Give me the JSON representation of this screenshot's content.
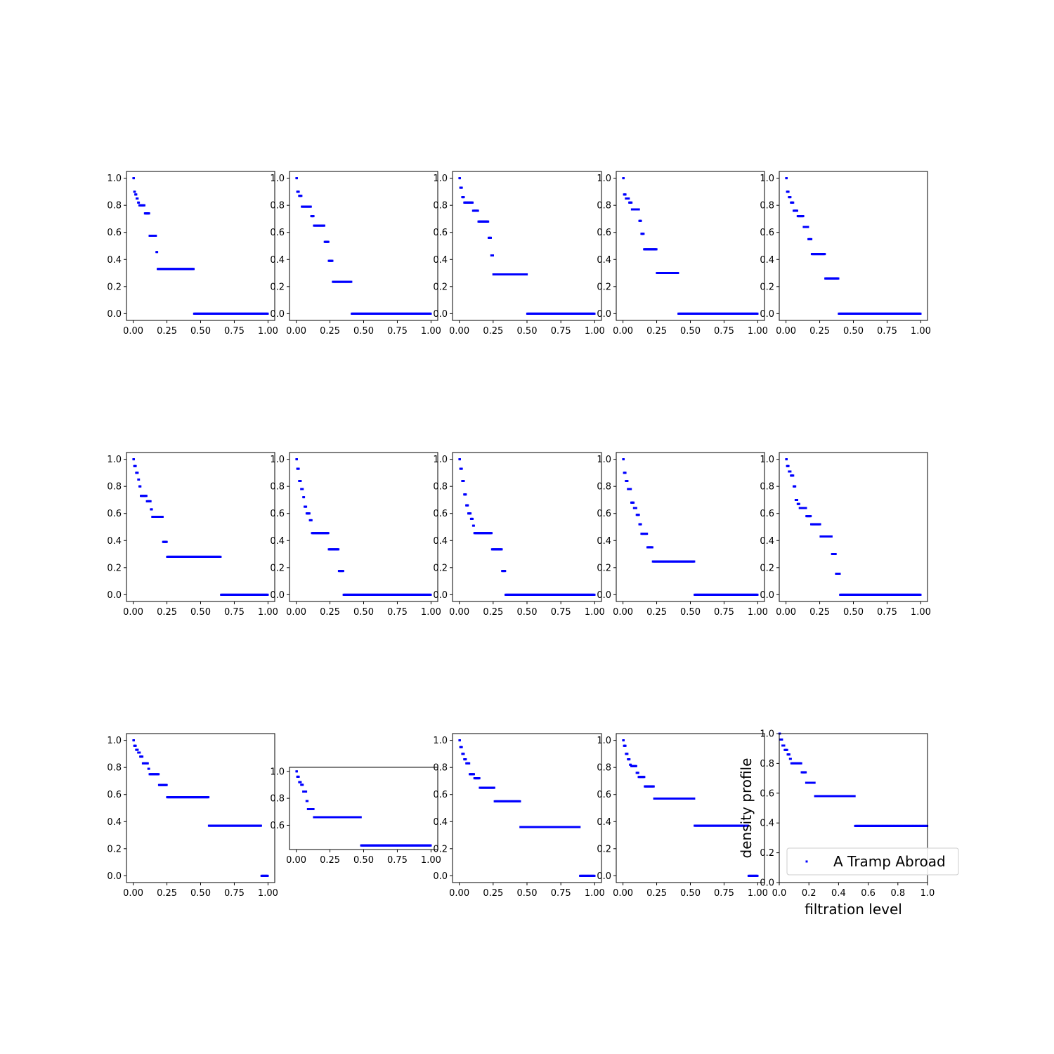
{
  "figure": {
    "marker_color": "#0000ff",
    "axes_color": "#000000",
    "background": "#ffffff"
  },
  "chart_data": [
    {
      "type": "scatter",
      "xticks": [
        "0.00",
        "0.25",
        "0.50",
        "0.75",
        "1.00"
      ],
      "yticks": [
        "0.0",
        "0.2",
        "0.4",
        "0.6",
        "0.8",
        "1.0"
      ],
      "xlim": [
        -0.05,
        1.05
      ],
      "ylim": [
        -0.05,
        1.05
      ],
      "steps": [
        [
          0,
          0.006,
          1.0
        ],
        [
          0.006,
          0.014,
          0.9
        ],
        [
          0.014,
          0.024,
          0.88
        ],
        [
          0.024,
          0.034,
          0.85
        ],
        [
          0.034,
          0.044,
          0.82
        ],
        [
          0.044,
          0.085,
          0.8
        ],
        [
          0.085,
          0.12,
          0.74
        ],
        [
          0.12,
          0.17,
          0.575
        ],
        [
          0.17,
          0.18,
          0.455
        ],
        [
          0.18,
          0.45,
          0.33
        ],
        [
          0.45,
          1.0,
          0.0
        ]
      ]
    },
    {
      "type": "scatter",
      "xticks": [
        "0.00",
        "0.25",
        "0.50",
        "0.75",
        "1.00"
      ],
      "yticks": [
        "0.0",
        "0.2",
        "0.4",
        "0.6",
        "0.8",
        "1.0"
      ],
      "xlim": [
        -0.05,
        1.05
      ],
      "ylim": [
        -0.05,
        1.05
      ],
      "steps": [
        [
          0,
          0.006,
          1.0
        ],
        [
          0.006,
          0.02,
          0.9
        ],
        [
          0.02,
          0.04,
          0.87
        ],
        [
          0.04,
          0.11,
          0.79
        ],
        [
          0.11,
          0.13,
          0.72
        ],
        [
          0.13,
          0.21,
          0.65
        ],
        [
          0.21,
          0.24,
          0.53
        ],
        [
          0.24,
          0.27,
          0.39
        ],
        [
          0.27,
          0.41,
          0.235
        ],
        [
          0.41,
          1.0,
          0.0
        ]
      ]
    },
    {
      "type": "scatter",
      "xticks": [
        "0.00",
        "0.25",
        "0.50",
        "0.75",
        "1.00"
      ],
      "yticks": [
        "0.0",
        "0.2",
        "0.4",
        "0.6",
        "0.8",
        "1.0"
      ],
      "xlim": [
        -0.05,
        1.05
      ],
      "ylim": [
        -0.05,
        1.05
      ],
      "steps": [
        [
          0,
          0.006,
          1.0
        ],
        [
          0.006,
          0.02,
          0.93
        ],
        [
          0.02,
          0.035,
          0.86
        ],
        [
          0.035,
          0.1,
          0.82
        ],
        [
          0.1,
          0.14,
          0.76
        ],
        [
          0.14,
          0.215,
          0.68
        ],
        [
          0.215,
          0.235,
          0.56
        ],
        [
          0.235,
          0.25,
          0.43
        ],
        [
          0.25,
          0.5,
          0.29
        ],
        [
          0.5,
          1.0,
          0.0
        ]
      ]
    },
    {
      "type": "scatter",
      "xticks": [
        "0.00",
        "0.25",
        "0.50",
        "0.75",
        "1.00"
      ],
      "yticks": [
        "0.0",
        "0.2",
        "0.4",
        "0.6",
        "0.8",
        "1.0"
      ],
      "xlim": [
        -0.05,
        1.05
      ],
      "ylim": [
        -0.05,
        1.05
      ],
      "steps": [
        [
          0,
          0.006,
          1.0
        ],
        [
          0.006,
          0.02,
          0.88
        ],
        [
          0.02,
          0.045,
          0.85
        ],
        [
          0.045,
          0.065,
          0.82
        ],
        [
          0.065,
          0.12,
          0.77
        ],
        [
          0.12,
          0.135,
          0.685
        ],
        [
          0.135,
          0.155,
          0.59
        ],
        [
          0.155,
          0.25,
          0.475
        ],
        [
          0.25,
          0.41,
          0.3
        ],
        [
          0.41,
          1.0,
          0.0
        ]
      ]
    },
    {
      "type": "scatter",
      "xticks": [
        "0.00",
        "0.25",
        "0.50",
        "0.75",
        "1.00"
      ],
      "yticks": [
        "0.0",
        "0.2",
        "0.4",
        "0.6",
        "0.8",
        "1.0"
      ],
      "xlim": [
        -0.05,
        1.05
      ],
      "ylim": [
        -0.05,
        1.05
      ],
      "steps": [
        [
          0,
          0.006,
          1.0
        ],
        [
          0.006,
          0.02,
          0.9
        ],
        [
          0.02,
          0.035,
          0.86
        ],
        [
          0.035,
          0.055,
          0.82
        ],
        [
          0.055,
          0.085,
          0.76
        ],
        [
          0.085,
          0.13,
          0.72
        ],
        [
          0.13,
          0.165,
          0.64
        ],
        [
          0.165,
          0.19,
          0.55
        ],
        [
          0.19,
          0.29,
          0.44
        ],
        [
          0.29,
          0.39,
          0.26
        ],
        [
          0.39,
          1.0,
          0.0
        ]
      ]
    },
    {
      "type": "scatter",
      "xticks": [
        "0.00",
        "0.25",
        "0.50",
        "0.75",
        "1.00"
      ],
      "yticks": [
        "0.0",
        "0.2",
        "0.4",
        "0.6",
        "0.8",
        "1.0"
      ],
      "xlim": [
        -0.05,
        1.05
      ],
      "ylim": [
        -0.05,
        1.05
      ],
      "steps": [
        [
          0,
          0.006,
          1.0
        ],
        [
          0.006,
          0.02,
          0.95
        ],
        [
          0.02,
          0.035,
          0.9
        ],
        [
          0.035,
          0.045,
          0.85
        ],
        [
          0.045,
          0.055,
          0.8
        ],
        [
          0.055,
          0.1,
          0.73
        ],
        [
          0.1,
          0.13,
          0.69
        ],
        [
          0.13,
          0.14,
          0.63
        ],
        [
          0.14,
          0.22,
          0.575
        ],
        [
          0.22,
          0.25,
          0.39
        ],
        [
          0.25,
          0.65,
          0.28
        ],
        [
          0.65,
          1.0,
          0.0
        ]
      ]
    },
    {
      "type": "scatter",
      "xticks": [
        "0.00",
        "0.25",
        "0.50",
        "0.75",
        "1.00"
      ],
      "yticks": [
        "0.0",
        "0.2",
        "0.4",
        "0.6",
        "0.8",
        "1.0"
      ],
      "xlim": [
        -0.05,
        1.05
      ],
      "ylim": [
        -0.05,
        1.05
      ],
      "steps": [
        [
          0,
          0.006,
          1.0
        ],
        [
          0.006,
          0.02,
          0.93
        ],
        [
          0.02,
          0.035,
          0.84
        ],
        [
          0.035,
          0.05,
          0.78
        ],
        [
          0.05,
          0.06,
          0.72
        ],
        [
          0.06,
          0.075,
          0.65
        ],
        [
          0.075,
          0.1,
          0.6
        ],
        [
          0.1,
          0.115,
          0.55
        ],
        [
          0.115,
          0.24,
          0.455
        ],
        [
          0.24,
          0.315,
          0.335
        ],
        [
          0.315,
          0.35,
          0.175
        ],
        [
          0.35,
          1.0,
          0.0
        ]
      ]
    },
    {
      "type": "scatter",
      "xticks": [
        "0.00",
        "0.25",
        "0.50",
        "0.75",
        "1.00"
      ],
      "yticks": [
        "0.0",
        "0.2",
        "0.4",
        "0.6",
        "0.8",
        "1.0"
      ],
      "xlim": [
        -0.05,
        1.05
      ],
      "ylim": [
        -0.05,
        1.05
      ],
      "steps": [
        [
          0,
          0.006,
          1.0
        ],
        [
          0.006,
          0.02,
          0.93
        ],
        [
          0.02,
          0.035,
          0.84
        ],
        [
          0.035,
          0.05,
          0.74
        ],
        [
          0.05,
          0.065,
          0.66
        ],
        [
          0.065,
          0.085,
          0.6
        ],
        [
          0.085,
          0.1,
          0.56
        ],
        [
          0.1,
          0.11,
          0.51
        ],
        [
          0.11,
          0.24,
          0.455
        ],
        [
          0.24,
          0.315,
          0.335
        ],
        [
          0.315,
          0.34,
          0.175
        ],
        [
          0.34,
          1.0,
          0.0
        ]
      ]
    },
    {
      "type": "scatter",
      "xticks": [
        "0.00",
        "0.25",
        "0.50",
        "0.75",
        "1.00"
      ],
      "yticks": [
        "0.0",
        "0.2",
        "0.4",
        "0.6",
        "0.8",
        "1.0"
      ],
      "xlim": [
        -0.05,
        1.05
      ],
      "ylim": [
        -0.05,
        1.05
      ],
      "steps": [
        [
          0,
          0.006,
          1.0
        ],
        [
          0.006,
          0.02,
          0.9
        ],
        [
          0.02,
          0.035,
          0.84
        ],
        [
          0.035,
          0.06,
          0.78
        ],
        [
          0.06,
          0.08,
          0.68
        ],
        [
          0.08,
          0.1,
          0.64
        ],
        [
          0.1,
          0.12,
          0.59
        ],
        [
          0.12,
          0.135,
          0.52
        ],
        [
          0.135,
          0.18,
          0.45
        ],
        [
          0.18,
          0.22,
          0.35
        ],
        [
          0.22,
          0.53,
          0.245
        ],
        [
          0.53,
          1.0,
          0.0
        ]
      ]
    },
    {
      "type": "scatter",
      "xticks": [
        "0.00",
        "0.25",
        "0.50",
        "0.75",
        "1.00"
      ],
      "yticks": [
        "0.0",
        "0.2",
        "0.4",
        "0.6",
        "0.8",
        "1.0"
      ],
      "xlim": [
        -0.05,
        1.05
      ],
      "ylim": [
        -0.05,
        1.05
      ],
      "steps": [
        [
          0,
          0.006,
          1.0
        ],
        [
          0.006,
          0.02,
          0.95
        ],
        [
          0.02,
          0.035,
          0.91
        ],
        [
          0.035,
          0.055,
          0.88
        ],
        [
          0.055,
          0.07,
          0.8
        ],
        [
          0.07,
          0.085,
          0.7
        ],
        [
          0.085,
          0.1,
          0.67
        ],
        [
          0.1,
          0.15,
          0.64
        ],
        [
          0.15,
          0.185,
          0.58
        ],
        [
          0.185,
          0.255,
          0.52
        ],
        [
          0.255,
          0.34,
          0.43
        ],
        [
          0.34,
          0.37,
          0.3
        ],
        [
          0.37,
          0.4,
          0.155
        ],
        [
          0.4,
          1.0,
          0.0
        ]
      ]
    },
    {
      "type": "scatter",
      "xticks": [
        "0.00",
        "0.25",
        "0.50",
        "0.75",
        "1.00"
      ],
      "yticks": [
        "0.0",
        "0.2",
        "0.4",
        "0.6",
        "0.8",
        "1.0"
      ],
      "xlim": [
        -0.05,
        1.05
      ],
      "ylim": [
        -0.05,
        1.05
      ],
      "steps": [
        [
          0,
          0.006,
          1.0
        ],
        [
          0.006,
          0.02,
          0.96
        ],
        [
          0.02,
          0.035,
          0.93
        ],
        [
          0.035,
          0.05,
          0.91
        ],
        [
          0.05,
          0.07,
          0.88
        ],
        [
          0.07,
          0.11,
          0.83
        ],
        [
          0.11,
          0.12,
          0.79
        ],
        [
          0.12,
          0.19,
          0.75
        ],
        [
          0.19,
          0.25,
          0.67
        ],
        [
          0.25,
          0.56,
          0.58
        ],
        [
          0.56,
          0.95,
          0.37
        ],
        [
          0.95,
          1.0,
          0.0
        ]
      ]
    },
    {
      "type": "scatter",
      "xticks": [
        "0.00",
        "0.25",
        "0.50",
        "0.75",
        "1.00"
      ],
      "yticks": [
        "0.6",
        "0.8",
        "1.0"
      ],
      "xlim": [
        -0.05,
        1.05
      ],
      "ylim": [
        0.42,
        1.03
      ],
      "steps": [
        [
          0,
          0.006,
          1.0
        ],
        [
          0.006,
          0.02,
          0.96
        ],
        [
          0.02,
          0.035,
          0.92
        ],
        [
          0.035,
          0.05,
          0.9
        ],
        [
          0.05,
          0.075,
          0.85
        ],
        [
          0.075,
          0.085,
          0.78
        ],
        [
          0.085,
          0.13,
          0.72
        ],
        [
          0.13,
          0.48,
          0.66
        ],
        [
          0.48,
          1.0,
          0.45
        ]
      ]
    },
    {
      "type": "scatter",
      "xticks": [
        "0.00",
        "0.25",
        "0.50",
        "0.75",
        "1.00"
      ],
      "yticks": [
        "0.0",
        "0.2",
        "0.4",
        "0.6",
        "0.8",
        "1.0"
      ],
      "xlim": [
        -0.05,
        1.05
      ],
      "ylim": [
        -0.05,
        1.05
      ],
      "steps": [
        [
          0,
          0.006,
          1.0
        ],
        [
          0.006,
          0.02,
          0.95
        ],
        [
          0.02,
          0.035,
          0.9
        ],
        [
          0.035,
          0.05,
          0.86
        ],
        [
          0.05,
          0.075,
          0.83
        ],
        [
          0.075,
          0.11,
          0.75
        ],
        [
          0.11,
          0.15,
          0.72
        ],
        [
          0.15,
          0.26,
          0.65
        ],
        [
          0.26,
          0.45,
          0.55
        ],
        [
          0.45,
          0.89,
          0.36
        ],
        [
          0.89,
          1.0,
          0.0
        ]
      ]
    },
    {
      "type": "scatter",
      "xticks": [
        "0.00",
        "0.25",
        "0.50",
        "0.75",
        "1.00"
      ],
      "yticks": [
        "0.0",
        "0.2",
        "0.4",
        "0.6",
        "0.8",
        "1.0"
      ],
      "xlim": [
        -0.05,
        1.05
      ],
      "ylim": [
        -0.05,
        1.05
      ],
      "steps": [
        [
          0,
          0.006,
          1.0
        ],
        [
          0.006,
          0.02,
          0.96
        ],
        [
          0.02,
          0.035,
          0.9
        ],
        [
          0.035,
          0.05,
          0.86
        ],
        [
          0.05,
          0.06,
          0.82
        ],
        [
          0.06,
          0.1,
          0.81
        ],
        [
          0.1,
          0.115,
          0.76
        ],
        [
          0.115,
          0.16,
          0.73
        ],
        [
          0.16,
          0.23,
          0.66
        ],
        [
          0.23,
          0.53,
          0.57
        ],
        [
          0.53,
          0.93,
          0.37
        ],
        [
          0.93,
          1.0,
          0.0
        ]
      ]
    },
    {
      "type": "scatter",
      "xticks": [
        "0.0",
        "0.2",
        "0.4",
        "0.6",
        "0.8",
        "1.0"
      ],
      "yticks": [
        "0.0",
        "0.2",
        "0.4",
        "0.6",
        "0.8",
        "1.0"
      ],
      "xlim": [
        0,
        1
      ],
      "ylim": [
        0,
        1
      ],
      "xlabel": "filtration level",
      "ylabel": "density profile",
      "legend": "A Tramp Abroad",
      "legend_loc": "lower right",
      "steps": [
        [
          0,
          0.006,
          1.0
        ],
        [
          0.006,
          0.02,
          0.96
        ],
        [
          0.02,
          0.035,
          0.92
        ],
        [
          0.035,
          0.055,
          0.89
        ],
        [
          0.055,
          0.07,
          0.86
        ],
        [
          0.07,
          0.08,
          0.83
        ],
        [
          0.08,
          0.15,
          0.8
        ],
        [
          0.15,
          0.18,
          0.74
        ],
        [
          0.18,
          0.24,
          0.67
        ],
        [
          0.24,
          0.51,
          0.58
        ],
        [
          0.51,
          1.0,
          0.38
        ]
      ]
    }
  ]
}
